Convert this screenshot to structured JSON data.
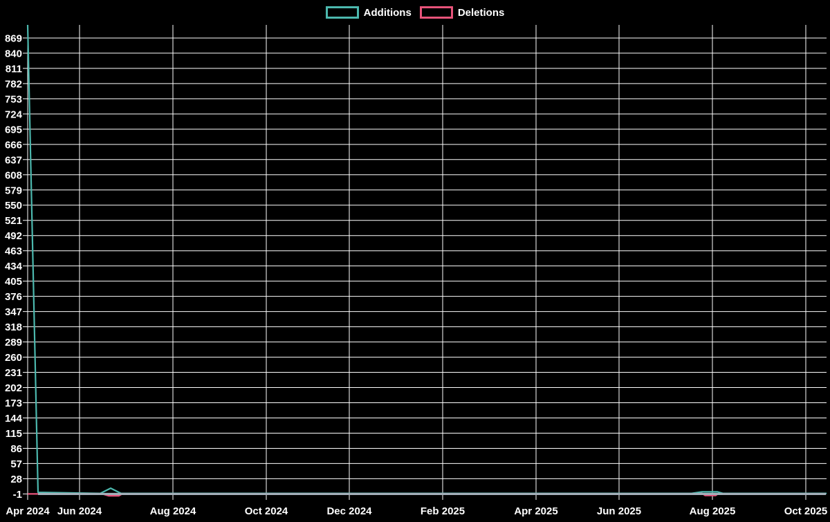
{
  "chart": {
    "background": "#000000",
    "legend": {
      "position": "top",
      "items": [
        {
          "label": "Additions",
          "color": "#4cb8ae"
        },
        {
          "label": "Deletions",
          "color": "#e8537a"
        }
      ]
    }
  },
  "chart_data": {
    "type": "line",
    "title": "",
    "xlabel": "",
    "ylabel": "",
    "grid": true,
    "grid_color": "#ffffff",
    "text_color": "#ffffff",
    "legend_position": "top",
    "x_axis": {
      "unit": "weeks",
      "range_weeks": [
        0,
        77
      ],
      "tick_labels": [
        "Apr 2024",
        "Jun 2024",
        "Aug 2024",
        "Oct 2024",
        "Dec 2024",
        "Feb 2025",
        "Apr 2025",
        "Jun 2025",
        "Aug 2025",
        "Oct 2025"
      ],
      "tick_positions_weeks": [
        0,
        5,
        14,
        23,
        31,
        40,
        49,
        57,
        66,
        75
      ]
    },
    "y_axis": {
      "min": -1,
      "max": 894,
      "tick_step": 29,
      "ticks": [
        869,
        840,
        811,
        782,
        753,
        724,
        695,
        666,
        637,
        608,
        579,
        550,
        521,
        492,
        463,
        434,
        405,
        376,
        347,
        318,
        289,
        260,
        231,
        202,
        173,
        144,
        115,
        86,
        57,
        28,
        -1
      ]
    },
    "baseline": {
      "value": 0,
      "color": "#a3afb9"
    },
    "series": [
      {
        "name": "Additions",
        "color": "#4cb8ae",
        "points_week_value": [
          [
            0,
            894
          ],
          [
            1,
            2
          ],
          [
            7,
            0
          ],
          [
            8,
            10
          ],
          [
            9,
            0
          ],
          [
            64,
            0
          ],
          [
            65,
            3
          ],
          [
            66.5,
            3
          ],
          [
            67,
            0
          ],
          [
            77,
            0
          ]
        ]
      },
      {
        "name": "Deletions",
        "color": "#e8537a",
        "points_week_value": [
          [
            0,
            -1
          ],
          [
            1,
            -1
          ],
          [
            7,
            0
          ],
          [
            7.8,
            -4.5
          ],
          [
            8.8,
            -4.5
          ],
          [
            9.2,
            0
          ],
          [
            65,
            0
          ],
          [
            65.3,
            -4
          ],
          [
            66.3,
            -4
          ],
          [
            66.6,
            0
          ],
          [
            77,
            0
          ]
        ]
      }
    ]
  }
}
